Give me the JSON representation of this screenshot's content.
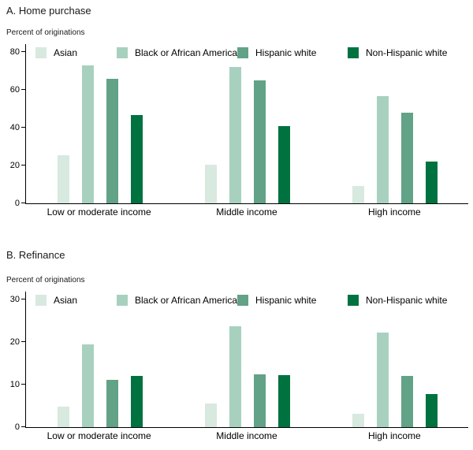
{
  "chart_data": [
    {
      "type": "bar",
      "title": "A. Home purchase",
      "unit_label": "Percent of originations",
      "categories": [
        "Low or moderate income",
        "Middle income",
        "High income"
      ],
      "yticks": [
        0,
        20,
        40,
        60,
        80
      ],
      "ylim": [
        0,
        80
      ],
      "grid": false,
      "legend_position": "top-inside",
      "series": [
        {
          "name": "Asian",
          "color": "#d8e9e0",
          "values": [
            25.5,
            20.5,
            9
          ]
        },
        {
          "name": "Black or African American",
          "color": "#a7d1be",
          "values": [
            73,
            72,
            56.5
          ]
        },
        {
          "name": "Hispanic white",
          "color": "#62a287",
          "values": [
            66,
            65,
            48
          ]
        },
        {
          "name": "Non-Hispanic white",
          "color": "#007240",
          "values": [
            46.5,
            41,
            22
          ]
        }
      ]
    },
    {
      "type": "bar",
      "title": "B. Refinance",
      "unit_label": "Percent of originations",
      "categories": [
        "Low or moderate income",
        "Middle income",
        "High income"
      ],
      "yticks": [
        0,
        10,
        20,
        30
      ],
      "ylim": [
        0,
        30
      ],
      "grid": false,
      "legend_position": "top-inside",
      "series": [
        {
          "name": "Asian",
          "color": "#d8e9e0",
          "values": [
            4.8,
            5.5,
            3.2
          ]
        },
        {
          "name": "Black or African American",
          "color": "#a7d1be",
          "values": [
            19.5,
            23.7,
            22.2
          ]
        },
        {
          "name": "Hispanic white",
          "color": "#62a287",
          "values": [
            11.2,
            12.4,
            12
          ]
        },
        {
          "name": "Non-Hispanic white",
          "color": "#007240",
          "values": [
            12,
            12.2,
            7.8
          ]
        }
      ]
    }
  ]
}
